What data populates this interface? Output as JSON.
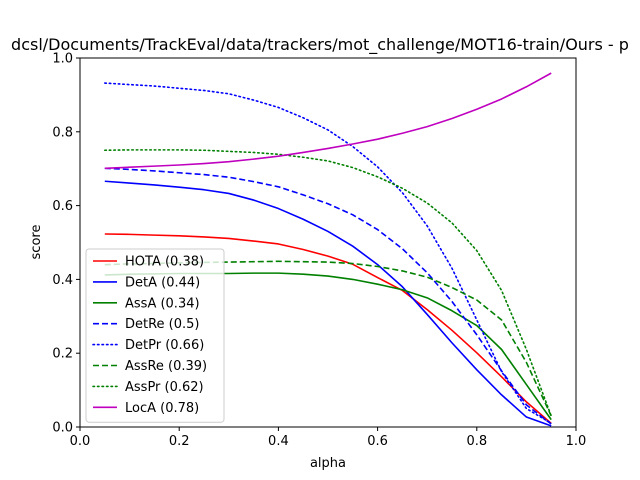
{
  "chart_data": {
    "type": "line",
    "title": "dcsl/Documents/TrackEval/data/trackers/mot_challenge/MOT16-train/Ours - p",
    "xlabel": "alpha",
    "ylabel": "score",
    "xlim": [
      0,
      1
    ],
    "ylim": [
      0,
      1
    ],
    "xticks": [
      "0.0",
      "0.2",
      "0.4",
      "0.6",
      "0.8",
      "1.0"
    ],
    "yticks": [
      "0.0",
      "0.2",
      "0.4",
      "0.6",
      "0.8",
      "1.0"
    ],
    "grid": false,
    "legend_position": "lower-left",
    "x": [
      0.05,
      0.1,
      0.15,
      0.2,
      0.25,
      0.3,
      0.35,
      0.4,
      0.45,
      0.5,
      0.55,
      0.6,
      0.65,
      0.7,
      0.75,
      0.8,
      0.85,
      0.9,
      0.95
    ],
    "series": [
      {
        "name": "HOTA (0.38)",
        "color": "#ff0000",
        "dash": "solid",
        "values": [
          0.523,
          0.522,
          0.52,
          0.518,
          0.515,
          0.511,
          0.504,
          0.496,
          0.481,
          0.463,
          0.441,
          0.405,
          0.37,
          0.318,
          0.262,
          0.201,
          0.136,
          0.068,
          0.01
        ]
      },
      {
        "name": "DetA (0.44)",
        "color": "#0000ff",
        "dash": "solid",
        "values": [
          0.666,
          0.661,
          0.656,
          0.65,
          0.643,
          0.633,
          0.615,
          0.592,
          0.563,
          0.53,
          0.49,
          0.44,
          0.38,
          0.305,
          0.228,
          0.155,
          0.087,
          0.027,
          0.003
        ]
      },
      {
        "name": "AssA (0.34)",
        "color": "#008000",
        "dash": "solid",
        "values": [
          0.412,
          0.414,
          0.415,
          0.416,
          0.416,
          0.416,
          0.417,
          0.417,
          0.414,
          0.409,
          0.4,
          0.387,
          0.372,
          0.35,
          0.315,
          0.275,
          0.21,
          0.115,
          0.02
        ]
      },
      {
        "name": "DetRe (0.5)",
        "color": "#0000ff",
        "dash": "dashed",
        "values": [
          0.701,
          0.698,
          0.694,
          0.689,
          0.684,
          0.677,
          0.665,
          0.651,
          0.629,
          0.605,
          0.575,
          0.535,
          0.483,
          0.418,
          0.34,
          0.25,
          0.152,
          0.06,
          0.008
        ]
      },
      {
        "name": "DetPr (0.66)",
        "color": "#0000ff",
        "dash": "dotted",
        "values": [
          0.932,
          0.928,
          0.924,
          0.918,
          0.912,
          0.903,
          0.886,
          0.866,
          0.838,
          0.805,
          0.76,
          0.705,
          0.635,
          0.545,
          0.43,
          0.29,
          0.15,
          0.05,
          0.01
        ]
      },
      {
        "name": "AssRe (0.39)",
        "color": "#008000",
        "dash": "dashed",
        "values": [
          0.44,
          0.442,
          0.443,
          0.445,
          0.446,
          0.447,
          0.448,
          0.449,
          0.448,
          0.447,
          0.443,
          0.435,
          0.423,
          0.406,
          0.378,
          0.344,
          0.29,
          0.175,
          0.03
        ]
      },
      {
        "name": "AssPr (0.62)",
        "color": "#008000",
        "dash": "dotted",
        "values": [
          0.75,
          0.751,
          0.751,
          0.751,
          0.75,
          0.747,
          0.744,
          0.739,
          0.731,
          0.721,
          0.703,
          0.678,
          0.647,
          0.607,
          0.553,
          0.478,
          0.37,
          0.21,
          0.03
        ]
      },
      {
        "name": "LocA (0.78)",
        "color": "#bf00bf",
        "dash": "solid",
        "values": [
          0.701,
          0.704,
          0.707,
          0.71,
          0.714,
          0.719,
          0.726,
          0.734,
          0.744,
          0.755,
          0.767,
          0.78,
          0.796,
          0.814,
          0.836,
          0.861,
          0.889,
          0.922,
          0.959
        ]
      }
    ]
  }
}
